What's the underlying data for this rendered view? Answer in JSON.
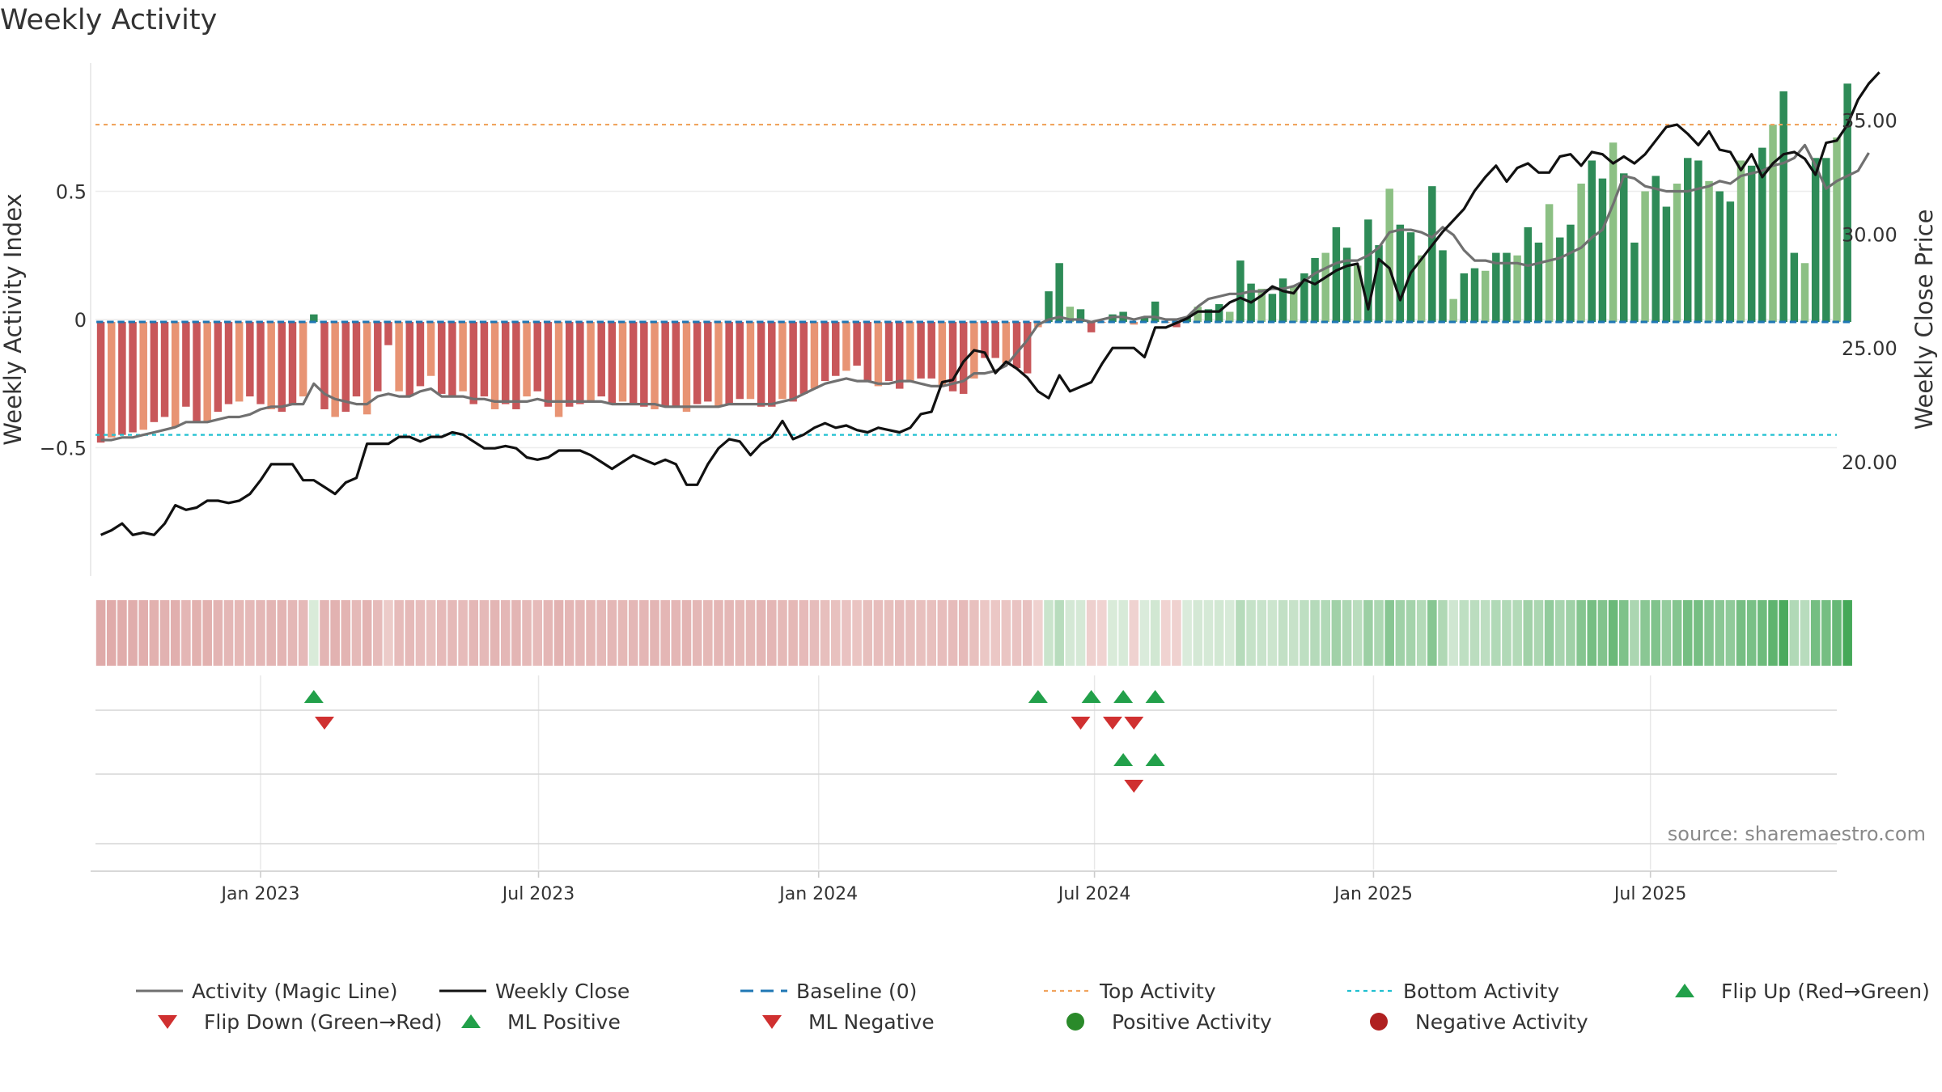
{
  "chart_data": {
    "type": "bar",
    "title": "Weekly Activity",
    "ylabel_left": "Weekly Activity Index",
    "ylabel_right": "Weekly Close Price",
    "source": "source: sharemaestro.com",
    "ylim_left": [
      -1.0,
      1.0
    ],
    "ylim_right": [
      15.0,
      37.5
    ],
    "yticks_left": [
      {
        "v": 0.5,
        "label": "0.5"
      },
      {
        "v": 0,
        "label": "0"
      },
      {
        "v": -0.5,
        "label": "−0.5"
      }
    ],
    "yticks_right": [
      {
        "v": 35,
        "label": "35.00"
      },
      {
        "v": 30,
        "label": "30.00"
      },
      {
        "v": 25,
        "label": "25.00"
      },
      {
        "v": 20,
        "label": "20.00"
      }
    ],
    "xlim": [
      0,
      163.5
    ],
    "xticks": [
      {
        "x": 15.5,
        "label": "Jan 2023"
      },
      {
        "x": 41.6,
        "label": "Jul 2023"
      },
      {
        "x": 67.9,
        "label": "Jan 2024"
      },
      {
        "x": 93.8,
        "label": "Jul 2024"
      },
      {
        "x": 120.0,
        "label": "Jan 2025"
      },
      {
        "x": 146.0,
        "label": "Jul 2025"
      }
    ],
    "top_activity": 0.76,
    "bottom_activity": -0.45,
    "colors": {
      "strong_pos": "#2e8b57",
      "weak_pos": "#8cc084",
      "strong_neg": "#c8575a",
      "weak_neg": "#e89474",
      "magic": "#707070",
      "close": "#111111",
      "baseline": "#1f77b4",
      "top": "#f0a45e",
      "bottom": "#20c0d0",
      "flip_up": "#22a04a",
      "flip_down": "#d03030",
      "neg_dot": "#b02020",
      "pos_dot": "#2a8a2a"
    },
    "activity": [
      -0.48,
      -0.46,
      -0.45,
      -0.44,
      -0.43,
      -0.4,
      -0.38,
      -0.42,
      -0.34,
      -0.4,
      -0.4,
      -0.36,
      -0.33,
      -0.32,
      -0.3,
      -0.33,
      -0.35,
      -0.36,
      -0.33,
      -0.3,
      0.02,
      -0.35,
      -0.38,
      -0.36,
      -0.3,
      -0.37,
      -0.28,
      -0.1,
      -0.28,
      -0.3,
      -0.26,
      -0.22,
      -0.29,
      -0.3,
      -0.28,
      -0.33,
      -0.3,
      -0.35,
      -0.33,
      -0.35,
      -0.3,
      -0.28,
      -0.34,
      -0.38,
      -0.34,
      -0.33,
      -0.32,
      -0.3,
      -0.33,
      -0.32,
      -0.33,
      -0.34,
      -0.35,
      -0.34,
      -0.34,
      -0.36,
      -0.33,
      -0.32,
      -0.34,
      -0.33,
      -0.31,
      -0.31,
      -0.34,
      -0.34,
      -0.31,
      -0.32,
      -0.29,
      -0.27,
      -0.24,
      -0.22,
      -0.2,
      -0.18,
      -0.24,
      -0.26,
      -0.24,
      -0.27,
      -0.24,
      -0.23,
      -0.23,
      -0.26,
      -0.28,
      -0.29,
      -0.23,
      -0.15,
      -0.15,
      -0.17,
      -0.19,
      -0.21,
      -0.03,
      0.11,
      0.22,
      0.05,
      0.04,
      -0.05,
      -0.01,
      0.02,
      0.03,
      -0.02,
      0.01,
      0.07,
      -0.01,
      -0.03,
      0.01,
      0.05,
      0.04,
      0.06,
      0.03,
      0.23,
      0.14,
      0.12,
      0.1,
      0.16,
      0.13,
      0.18,
      0.24,
      0.26,
      0.36,
      0.28,
      0.21,
      0.39,
      0.29,
      0.51,
      0.37,
      0.34,
      0.25,
      0.52,
      0.27,
      0.08,
      0.18,
      0.2,
      0.19,
      0.26,
      0.26,
      0.25,
      0.36,
      0.3,
      0.45,
      0.32,
      0.37,
      0.53,
      0.62,
      0.55,
      0.69,
      0.57,
      0.3,
      0.5,
      0.56,
      0.44,
      0.53,
      0.63,
      0.62,
      0.54,
      0.5,
      0.46,
      0.62,
      0.6,
      0.67,
      0.76,
      0.89,
      0.26,
      0.22,
      0.63,
      0.63,
      0.71,
      0.92
    ],
    "magic_line": [
      -0.47,
      -0.47,
      -0.46,
      -0.46,
      -0.45,
      -0.44,
      -0.43,
      -0.42,
      -0.4,
      -0.4,
      -0.4,
      -0.39,
      -0.38,
      -0.38,
      -0.37,
      -0.35,
      -0.34,
      -0.34,
      -0.33,
      -0.33,
      -0.25,
      -0.29,
      -0.31,
      -0.32,
      -0.33,
      -0.33,
      -0.3,
      -0.29,
      -0.3,
      -0.3,
      -0.28,
      -0.27,
      -0.3,
      -0.3,
      -0.3,
      -0.31,
      -0.31,
      -0.32,
      -0.32,
      -0.32,
      -0.32,
      -0.31,
      -0.32,
      -0.32,
      -0.32,
      -0.32,
      -0.32,
      -0.32,
      -0.33,
      -0.33,
      -0.33,
      -0.33,
      -0.33,
      -0.34,
      -0.34,
      -0.34,
      -0.34,
      -0.34,
      -0.34,
      -0.33,
      -0.33,
      -0.33,
      -0.33,
      -0.33,
      -0.32,
      -0.31,
      -0.29,
      -0.27,
      -0.25,
      -0.24,
      -0.23,
      -0.24,
      -0.24,
      -0.25,
      -0.25,
      -0.24,
      -0.24,
      -0.25,
      -0.26,
      -0.26,
      -0.25,
      -0.24,
      -0.21,
      -0.21,
      -0.2,
      -0.18,
      -0.13,
      -0.08,
      -0.02,
      0.0,
      0.01,
      0.0,
      0.0,
      -0.01,
      0.0,
      0.01,
      0.01,
      0.0,
      0.01,
      0.01,
      0.0,
      0.0,
      0.01,
      0.05,
      0.08,
      0.09,
      0.1,
      0.1,
      0.11,
      0.11,
      0.12,
      0.12,
      0.13,
      0.15,
      0.18,
      0.2,
      0.22,
      0.23,
      0.23,
      0.25,
      0.28,
      0.34,
      0.35,
      0.35,
      0.34,
      0.32,
      0.36,
      0.33,
      0.27,
      0.23,
      0.23,
      0.22,
      0.22,
      0.22,
      0.21,
      0.22,
      0.23,
      0.24,
      0.26,
      0.28,
      0.32,
      0.35,
      0.45,
      0.56,
      0.55,
      0.52,
      0.51,
      0.5,
      0.5,
      0.5,
      0.51,
      0.52,
      0.54,
      0.53,
      0.56,
      0.57,
      0.58,
      0.6,
      0.61,
      0.63,
      0.68,
      0.6,
      0.51,
      0.54,
      0.56,
      0.58,
      0.65
    ],
    "weekly_close": [
      16.8,
      17.0,
      17.3,
      16.8,
      16.9,
      16.8,
      17.3,
      18.1,
      17.9,
      18.0,
      18.3,
      18.3,
      18.2,
      18.3,
      18.6,
      19.2,
      19.9,
      19.9,
      19.9,
      19.2,
      19.2,
      18.9,
      18.6,
      19.1,
      19.3,
      20.8,
      20.8,
      20.8,
      21.1,
      21.1,
      20.9,
      21.1,
      21.1,
      21.3,
      21.2,
      20.9,
      20.6,
      20.6,
      20.7,
      20.6,
      20.2,
      20.1,
      20.2,
      20.5,
      20.5,
      20.5,
      20.3,
      20.0,
      19.7,
      20.0,
      20.3,
      20.1,
      19.9,
      20.1,
      19.9,
      19.0,
      19.0,
      19.9,
      20.6,
      21.0,
      20.9,
      20.3,
      20.8,
      21.1,
      21.8,
      21.0,
      21.2,
      21.5,
      21.7,
      21.5,
      21.6,
      21.4,
      21.3,
      21.5,
      21.4,
      21.3,
      21.5,
      22.1,
      22.2,
      23.5,
      23.6,
      24.4,
      24.9,
      24.8,
      23.9,
      24.4,
      24.1,
      23.7,
      23.1,
      22.8,
      23.8,
      23.1,
      23.3,
      23.5,
      24.3,
      25.0,
      25.0,
      25.0,
      24.6,
      25.9,
      25.9,
      26.1,
      26.3,
      26.6,
      26.6,
      26.6,
      27.0,
      27.2,
      27.0,
      27.3,
      27.7,
      27.5,
      27.4,
      28.0,
      27.8,
      28.1,
      28.4,
      28.6,
      28.7,
      26.7,
      28.9,
      28.5,
      27.1,
      28.3,
      28.9,
      29.5,
      30.1,
      30.6,
      31.1,
      31.9,
      32.5,
      33.0,
      32.3,
      32.9,
      33.1,
      32.7,
      32.7,
      33.4,
      33.5,
      33.0,
      33.6,
      33.5,
      33.1,
      33.4,
      33.1,
      33.5,
      34.1,
      34.7,
      34.8,
      34.4,
      33.9,
      34.5,
      33.7,
      33.6,
      32.8,
      33.5,
      32.5,
      33.1,
      33.5,
      33.6,
      33.3,
      32.6,
      34.0,
      34.1,
      34.8,
      35.9,
      36.6,
      37.1
    ],
    "heat_strip": "Weekly activity heat strip (red = negative, green = positive)",
    "flip_up_primary": [
      20,
      88,
      93,
      96,
      99
    ],
    "flip_down_primary": [
      21,
      92,
      95,
      97
    ],
    "ml_positive": [
      96,
      99
    ],
    "ml_negative": [
      97
    ],
    "legend": [
      {
        "key": "magic",
        "label": "Activity (Magic Line)"
      },
      {
        "key": "close",
        "label": "Weekly Close"
      },
      {
        "key": "baseline",
        "label": "Baseline (0)"
      },
      {
        "key": "top",
        "label": "Top Activity"
      },
      {
        "key": "bottom",
        "label": "Bottom Activity"
      },
      {
        "key": "flip_up",
        "label": "Flip Up (Red→Green)"
      },
      {
        "key": "flip_down",
        "label": "Flip Down (Green→Red)"
      },
      {
        "key": "ml_pos",
        "label": "ML Positive"
      },
      {
        "key": "ml_neg",
        "label": "ML Negative"
      },
      {
        "key": "pos_dot",
        "label": "Positive Activity"
      },
      {
        "key": "neg_dot",
        "label": "Negative Activity"
      }
    ]
  }
}
